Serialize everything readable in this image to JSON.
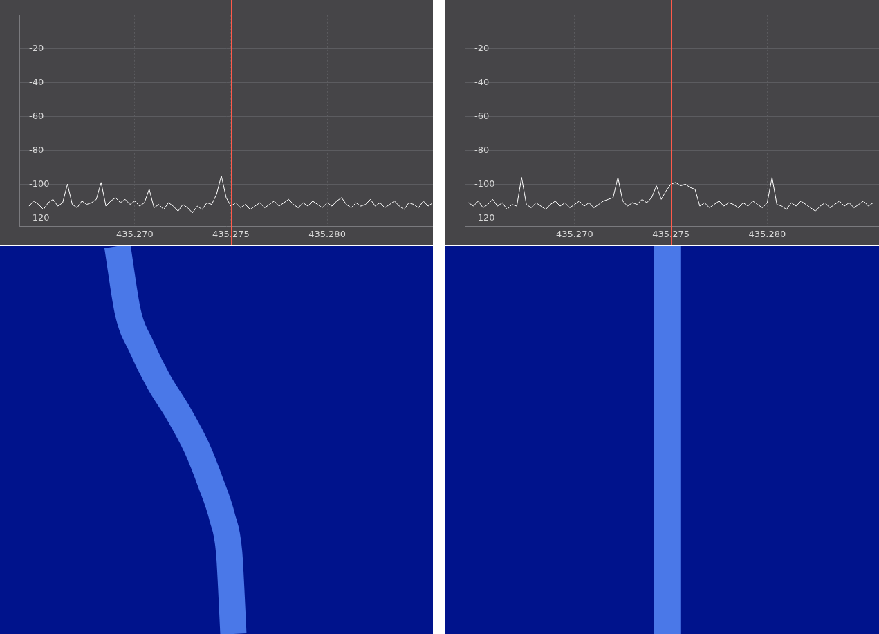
{
  "chart_data": [
    {
      "type": "line",
      "xlim": [
        435.264,
        435.2855
      ],
      "xticks": [
        {
          "value": 435.27,
          "label": "435.270"
        },
        {
          "value": 435.275,
          "label": "435.275"
        },
        {
          "value": 435.28,
          "label": "435.280"
        }
      ],
      "ylim": [
        -125,
        0
      ],
      "yticks": [
        -120,
        -100,
        -80,
        -60,
        -40,
        -20
      ],
      "grid": true,
      "color": "#ffffff",
      "tuned_frequency": 435.275,
      "x": [
        435.2645,
        435.26475,
        435.265,
        435.26525,
        435.2655,
        435.26575,
        435.266,
        435.26625,
        435.2665,
        435.26675,
        435.267,
        435.26725,
        435.2675,
        435.26775,
        435.268,
        435.26825,
        435.2685,
        435.26875,
        435.269,
        435.26925,
        435.2695,
        435.26975,
        435.27,
        435.27025,
        435.2705,
        435.27075,
        435.271,
        435.27125,
        435.2715,
        435.27175,
        435.272,
        435.27225,
        435.2725,
        435.27275,
        435.273,
        435.27325,
        435.2735,
        435.27375,
        435.274,
        435.27425,
        435.2745,
        435.27475,
        435.275,
        435.27525,
        435.2755,
        435.27575,
        435.276,
        435.27625,
        435.2765,
        435.27675,
        435.277,
        435.27725,
        435.2775,
        435.27775,
        435.278,
        435.27825,
        435.2785,
        435.27875,
        435.279,
        435.27925,
        435.2795,
        435.27975,
        435.28,
        435.28025,
        435.2805,
        435.28075,
        435.281,
        435.28125,
        435.2815,
        435.28175,
        435.282,
        435.28225,
        435.2825,
        435.28275,
        435.283,
        435.28325,
        435.2835,
        435.28375,
        435.284,
        435.28425,
        435.2845,
        435.28475,
        435.285,
        435.28525,
        435.2855
      ],
      "values": [
        -113,
        -110,
        -112,
        -115,
        -111,
        -109,
        -113,
        -111,
        -100,
        -112,
        -114,
        -110,
        -112,
        -111,
        -109,
        -99,
        -113,
        -110,
        -108,
        -111,
        -109,
        -112,
        -110,
        -113,
        -111,
        -103,
        -114,
        -112,
        -115,
        -111,
        -113,
        -116,
        -112,
        -114,
        -117,
        -113,
        -115,
        -111,
        -112,
        -106,
        -95,
        -108,
        -113,
        -111,
        -114,
        -112,
        -115,
        -113,
        -111,
        -114,
        -112,
        -110,
        -113,
        -111,
        -109,
        -112,
        -114,
        -111,
        -113,
        -110,
        -112,
        -114,
        -111,
        -113,
        -110,
        -108,
        -112,
        -114,
        -111,
        -113,
        -112,
        -109,
        -113,
        -111,
        -114,
        -112,
        -110,
        -113,
        -115,
        -111,
        -112,
        -114,
        -110,
        -113,
        -111
      ]
    },
    {
      "type": "waterfall",
      "xlim": [
        435.264,
        435.2855
      ],
      "ylim": [
        0,
        1
      ],
      "tick_labels": false,
      "color": "#4a78e8",
      "x": [
        435.26983,
        435.27035,
        435.27103,
        435.27189,
        435.27285,
        435.27377,
        435.27446,
        435.27504,
        435.27538,
        435.27548,
        435.27559
      ],
      "values": [
        0,
        0.17,
        0.26,
        0.35,
        0.43,
        0.52,
        0.61,
        0.7,
        0.79,
        0.88,
        1
      ]
    },
    {
      "type": "line",
      "xlim": [
        435.2643,
        435.2858
      ],
      "xticks": [
        {
          "value": 435.27,
          "label": "435.270"
        },
        {
          "value": 435.275,
          "label": "435.275"
        },
        {
          "value": 435.28,
          "label": "435.280"
        }
      ],
      "ylim": [
        -125,
        0
      ],
      "yticks": [
        -120,
        -100,
        -80,
        -60,
        -40,
        -20
      ],
      "grid": true,
      "color": "#ffffff",
      "tuned_frequency": 435.275,
      "x": [
        435.2645,
        435.26475,
        435.265,
        435.26525,
        435.2655,
        435.26575,
        435.266,
        435.26625,
        435.2665,
        435.26675,
        435.267,
        435.26725,
        435.2675,
        435.26775,
        435.268,
        435.26825,
        435.2685,
        435.26875,
        435.269,
        435.26925,
        435.2695,
        435.26975,
        435.27,
        435.27025,
        435.2705,
        435.27075,
        435.271,
        435.27125,
        435.2715,
        435.27175,
        435.272,
        435.27225,
        435.2725,
        435.27275,
        435.273,
        435.27325,
        435.2735,
        435.27375,
        435.274,
        435.27425,
        435.2745,
        435.27475,
        435.275,
        435.27525,
        435.2755,
        435.27575,
        435.276,
        435.27625,
        435.2765,
        435.27675,
        435.277,
        435.27725,
        435.2775,
        435.27775,
        435.278,
        435.27825,
        435.2785,
        435.27875,
        435.279,
        435.27925,
        435.2795,
        435.27975,
        435.28,
        435.28025,
        435.2805,
        435.28075,
        435.281,
        435.28125,
        435.2815,
        435.28175,
        435.282,
        435.28225,
        435.2825,
        435.28275,
        435.283,
        435.28325,
        435.2835,
        435.28375,
        435.284,
        435.28425,
        435.2845,
        435.28475,
        435.285,
        435.28525,
        435.2855
      ],
      "values": [
        -111,
        -113,
        -110,
        -114,
        -112,
        -109,
        -113,
        -111,
        -115,
        -112,
        -113,
        -96,
        -112,
        -114,
        -111,
        -113,
        -115,
        -112,
        -110,
        -113,
        -111,
        -114,
        -112,
        -110,
        -113,
        -111,
        -114,
        -112,
        -110,
        -109,
        -108,
        -96,
        -110,
        -113,
        -111,
        -112,
        -109,
        -111,
        -108,
        -101,
        -109,
        -104,
        -100,
        -99,
        -101,
        -100,
        -102,
        -103,
        -113,
        -111,
        -114,
        -112,
        -110,
        -113,
        -111,
        -112,
        -114,
        -111,
        -113,
        -110,
        -112,
        -114,
        -111,
        -96,
        -112,
        -113,
        -115,
        -111,
        -113,
        -110,
        -112,
        -114,
        -116,
        -113,
        -111,
        -114,
        -112,
        -110,
        -113,
        -111,
        -114,
        -112,
        -110,
        -113,
        -111
      ]
    },
    {
      "type": "waterfall",
      "xlim": [
        435.2643,
        435.2858
      ],
      "ylim": [
        0,
        1
      ],
      "tick_labels": false,
      "color": "#4a78e8",
      "x": [
        435.2753,
        435.2753,
        435.2753
      ],
      "values": [
        0,
        0.5,
        1
      ]
    }
  ]
}
